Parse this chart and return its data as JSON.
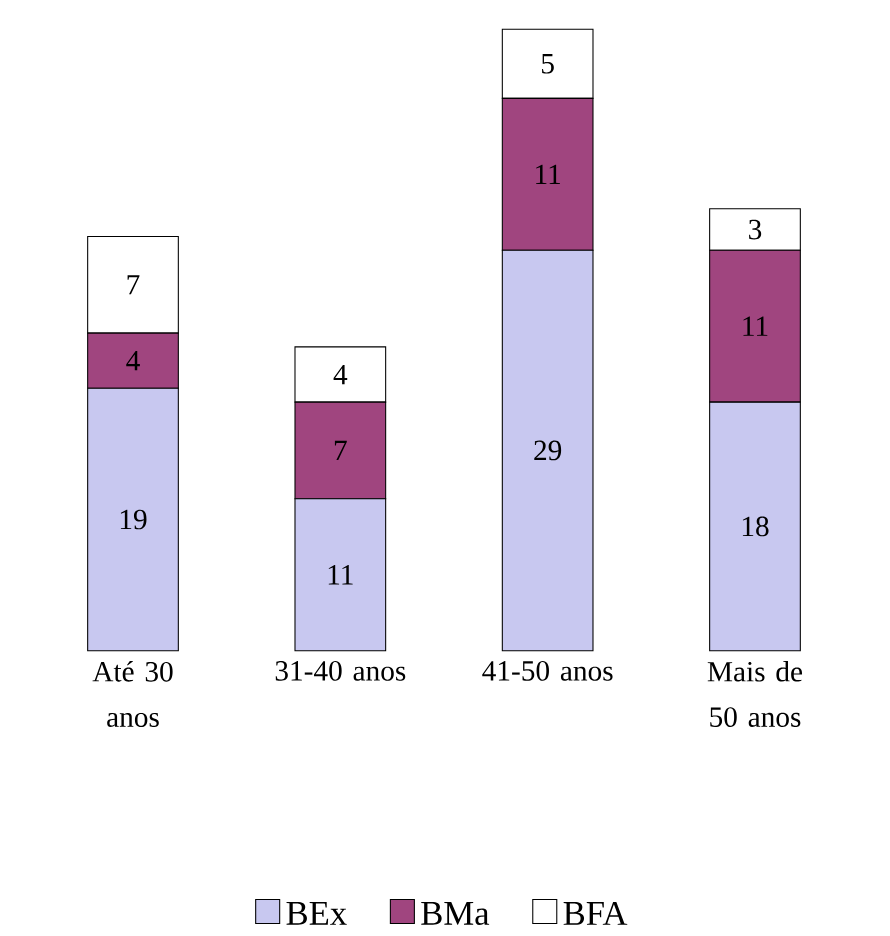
{
  "chart_data": {
    "type": "bar",
    "stacked": true,
    "legend": "bottom",
    "data_labels": true,
    "categories": [
      "Até 30 anos",
      "31-40 anos",
      "41-50 anos",
      "Mais de 50 anos"
    ],
    "series": [
      {
        "name": "BEx",
        "color": "#c8c8f0",
        "values": [
          19,
          11,
          29,
          18
        ]
      },
      {
        "name": "BMa",
        "color": "#a0457f",
        "values": [
          4,
          7,
          11,
          11
        ]
      },
      {
        "name": "BFA",
        "color": "#ffffff",
        "values": [
          7,
          4,
          5,
          3
        ]
      }
    ]
  }
}
